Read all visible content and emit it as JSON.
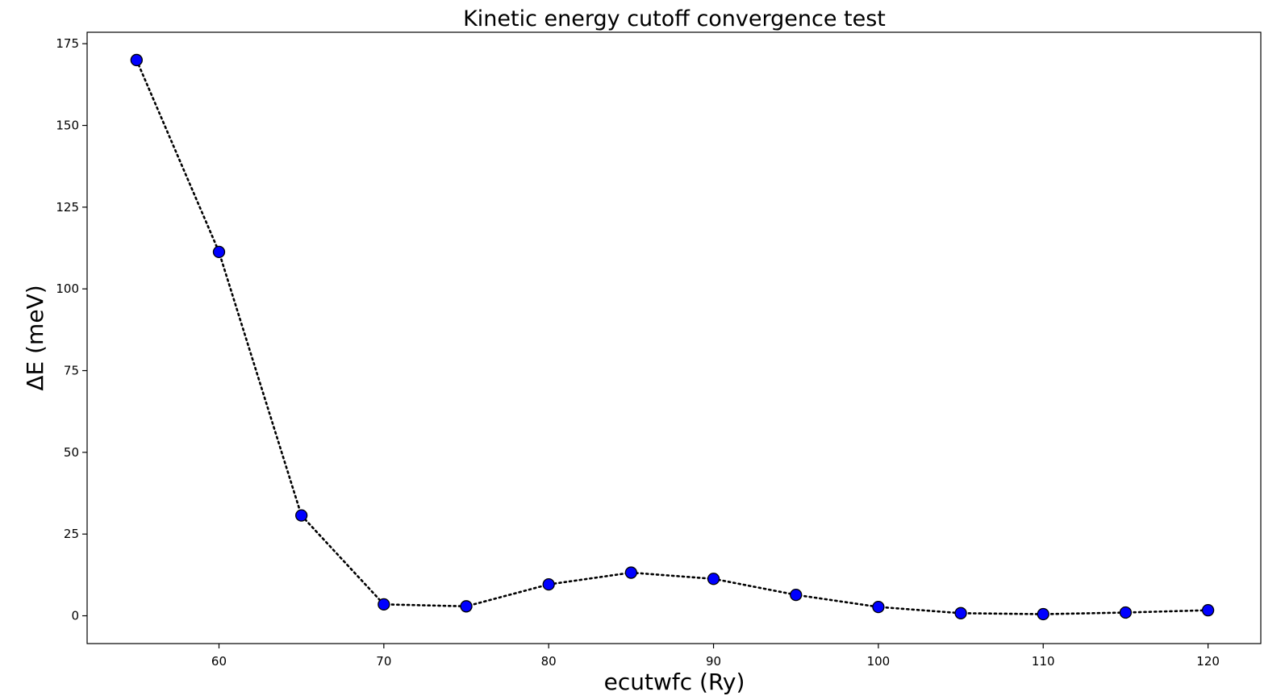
{
  "chart_data": {
    "type": "line",
    "title": "Kinetic energy cutoff convergence test",
    "xlabel": "ecutwfc (Ry)",
    "ylabel": "ΔE  (meV)",
    "xlim": [
      52,
      123.2
    ],
    "ylim": [
      -8.5,
      178.5
    ],
    "xticks": [
      60,
      70,
      80,
      90,
      100,
      110,
      120
    ],
    "yticks": [
      0,
      25,
      50,
      75,
      100,
      125,
      150,
      175
    ],
    "grid": false,
    "line_style": "dotted",
    "line_color": "#000000",
    "marker_fill": "#0000ff",
    "marker_edge": "#000000",
    "x": [
      55,
      60,
      65,
      70,
      75,
      80,
      85,
      90,
      95,
      100,
      105,
      110,
      115,
      120
    ],
    "series": [
      {
        "values": [
          170.0,
          111.3,
          30.7,
          3.5,
          2.9,
          9.6,
          13.2,
          11.3,
          6.4,
          2.7,
          0.8,
          0.5,
          1.0,
          1.7
        ]
      }
    ]
  }
}
